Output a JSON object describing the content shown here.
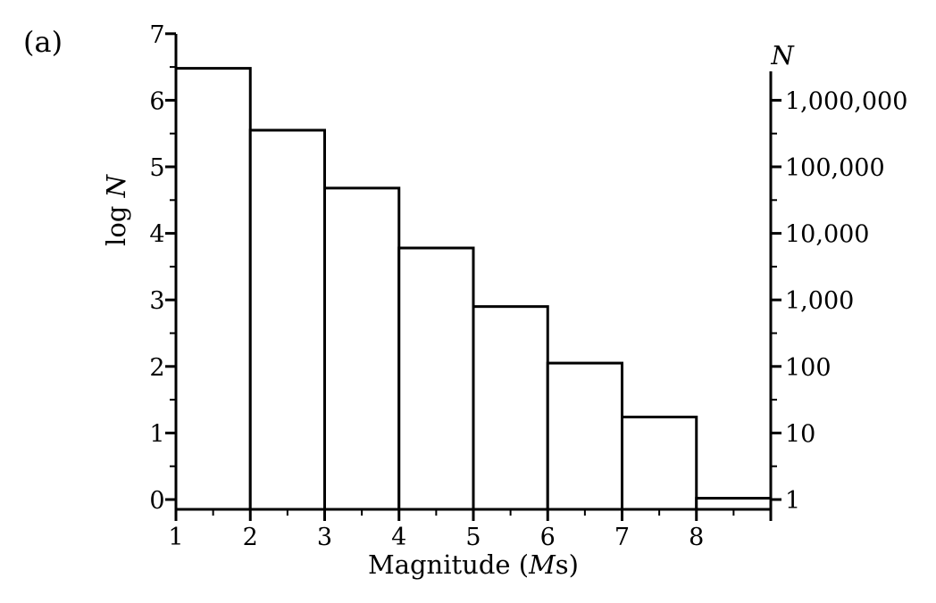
{
  "chart_data": {
    "type": "bar",
    "panel_label": "(a)",
    "xlabel": "Magnitude (Ms)",
    "xlabel_parts": [
      "Magnitude (",
      "M",
      "s)"
    ],
    "ylabel_left": "log N",
    "ylabel_left_parts": [
      "log ",
      "N"
    ],
    "ylabel_right": "N",
    "x_ticks": [
      "1",
      "2",
      "3",
      "4",
      "5",
      "6",
      "7",
      "8"
    ],
    "y_ticks_left": [
      "0",
      "1",
      "2",
      "3",
      "4",
      "5",
      "6",
      "7"
    ],
    "y_ticks_right": [
      "1",
      "10",
      "100",
      "1,000",
      "10,000",
      "100,000",
      "1,000,000"
    ],
    "xlim": [
      1,
      9
    ],
    "ylim": [
      -0.1,
      7
    ],
    "bins": [
      {
        "x0": 1,
        "x1": 2,
        "value": 6.48
      },
      {
        "x0": 2,
        "x1": 3,
        "value": 5.55
      },
      {
        "x0": 3,
        "x1": 4,
        "value": 4.68
      },
      {
        "x0": 4,
        "x1": 5,
        "value": 3.78
      },
      {
        "x0": 5,
        "x1": 6,
        "value": 2.9
      },
      {
        "x0": 6,
        "x1": 7,
        "value": 2.05
      },
      {
        "x0": 7,
        "x1": 8,
        "value": 1.24
      },
      {
        "x0": 8,
        "x1": 9,
        "value": 0.02
      }
    ],
    "grid": false,
    "legend": "none"
  }
}
